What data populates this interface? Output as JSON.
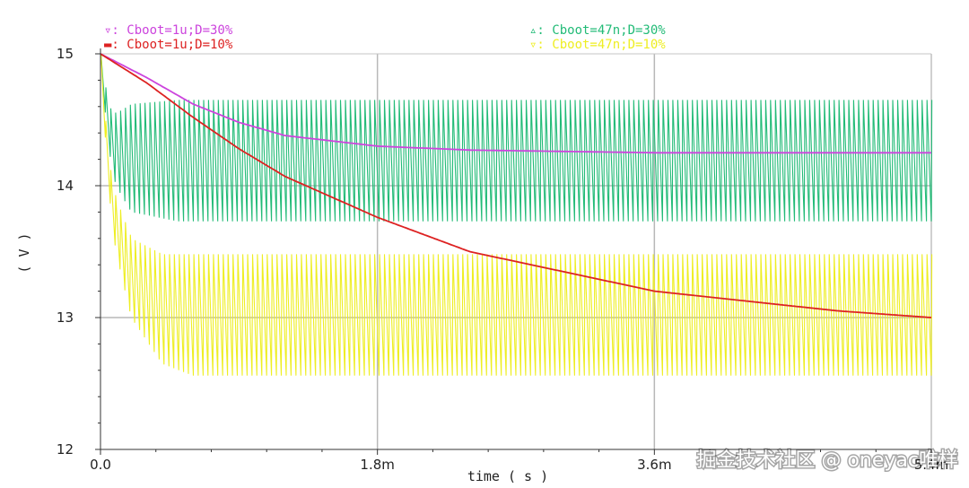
{
  "chart_data": {
    "type": "line",
    "xlabel": "time ( s )",
    "ylabel": "( V )",
    "xlim": [
      0,
      0.0054
    ],
    "ylim": [
      12,
      15
    ],
    "x_ticks": [
      {
        "value": 0,
        "label": "0.0"
      },
      {
        "value": 0.0018,
        "label": "1.8m"
      },
      {
        "value": 0.0036,
        "label": "3.6m"
      },
      {
        "value": 0.0054,
        "label": "5.4m"
      }
    ],
    "y_ticks": [
      {
        "value": 12,
        "label": "12"
      },
      {
        "value": 13,
        "label": "13"
      },
      {
        "value": 14,
        "label": "14"
      },
      {
        "value": 15,
        "label": "15"
      }
    ],
    "grid": true,
    "legend_position": "top",
    "series": [
      {
        "name": "Cboot=1u;D=30%",
        "legend": "▿: Cboot=1u;D=30%",
        "color": "#cc44dd",
        "kind": "decay",
        "x": [
          0,
          0.0003,
          0.0006,
          0.0009,
          0.0012,
          0.0018,
          0.0024,
          0.0036,
          0.0054
        ],
        "values": [
          15.0,
          14.82,
          14.62,
          14.48,
          14.38,
          14.3,
          14.27,
          14.25,
          14.25
        ]
      },
      {
        "name": "Cboot=1u;D=10%",
        "legend": "▬: Cboot=1u;D=10%",
        "color": "#dd2222",
        "kind": "decay",
        "x": [
          0,
          0.0003,
          0.0006,
          0.0009,
          0.0012,
          0.0018,
          0.0024,
          0.0036,
          0.0048,
          0.0054
        ],
        "values": [
          15.0,
          14.78,
          14.52,
          14.28,
          14.07,
          13.76,
          13.5,
          13.2,
          13.05,
          13.0
        ]
      },
      {
        "name": "Cboot=47n;D=30%",
        "legend": "▵: Cboot=47n;D=30%",
        "color": "#22bb77",
        "kind": "ripple",
        "x": [
          0,
          5e-05,
          0.0001,
          0.0002,
          0.0005,
          0.0054
        ],
        "min": [
          15.0,
          14.3,
          14.0,
          13.8,
          13.73,
          13.73
        ],
        "max": [
          15.0,
          14.6,
          14.55,
          14.62,
          14.65,
          14.65
        ]
      },
      {
        "name": "Cboot=47n;D=10%",
        "legend": "▿: Cboot=47n;D=10%",
        "color": "#eeee22",
        "kind": "ripple",
        "x": [
          0,
          5e-05,
          0.0001,
          0.0002,
          0.0004,
          0.0006,
          0.0054
        ],
        "min": [
          15.0,
          14.0,
          13.5,
          13.0,
          12.65,
          12.56,
          12.56
        ],
        "max": [
          15.0,
          14.2,
          13.9,
          13.6,
          13.48,
          13.48,
          13.48
        ]
      }
    ]
  },
  "watermark": "掘金技术社区 @ oneyac唯样"
}
